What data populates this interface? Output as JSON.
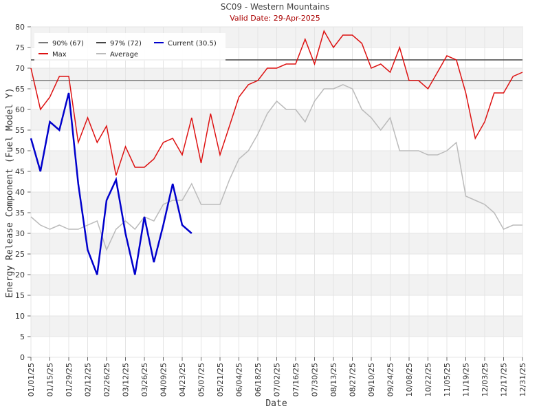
{
  "chart_data": {
    "type": "line",
    "title": "SC09 - Western Mountains",
    "subtitle": "Valid Date: 29-Apr-2025",
    "x_label": "Date",
    "y_label": "Energy Release Component (Fuel Model Y)",
    "x": [
      "01/01/25",
      "01/08/25",
      "01/15/25",
      "01/22/25",
      "01/29/25",
      "02/05/25",
      "02/12/25",
      "02/19/25",
      "02/26/25",
      "03/05/25",
      "03/12/25",
      "03/19/25",
      "03/26/25",
      "04/02/25",
      "04/09/25",
      "04/16/25",
      "04/23/25",
      "04/30/25",
      "05/07/25",
      "05/14/25",
      "05/21/25",
      "05/28/25",
      "06/04/25",
      "06/11/25",
      "06/18/25",
      "06/25/25",
      "07/02/25",
      "07/09/25",
      "07/16/25",
      "07/23/25",
      "07/30/25",
      "08/06/25",
      "08/13/25",
      "08/20/25",
      "08/27/25",
      "09/03/25",
      "09/10/25",
      "09/17/25",
      "09/24/25",
      "10/01/25",
      "10/08/25",
      "10/15/25",
      "10/22/25",
      "10/29/25",
      "11/05/25",
      "11/12/25",
      "11/19/25",
      "11/26/25",
      "12/03/25",
      "12/10/25",
      "12/17/25",
      "12/24/25",
      "12/31/25"
    ],
    "hlines": [
      {
        "name": "90% (67)",
        "value": 67,
        "color": "#777777"
      },
      {
        "name": "97% (72)",
        "value": 72,
        "color": "#444444"
      }
    ],
    "series": [
      {
        "name": "Max",
        "color": "#dd1111",
        "values": [
          70,
          60,
          63,
          68,
          68,
          52,
          58,
          52,
          56,
          44,
          51,
          46,
          46,
          48,
          52,
          53,
          49,
          58,
          47,
          59,
          49,
          56,
          63,
          66,
          67,
          70,
          70,
          71,
          71,
          77,
          71,
          79,
          75,
          78,
          78,
          76,
          70,
          71,
          69,
          75,
          67,
          67,
          65,
          69,
          73,
          72,
          64,
          53,
          57,
          64,
          64,
          68,
          69
        ]
      },
      {
        "name": "Average",
        "color": "#bbbbbb",
        "values": [
          34,
          32,
          31,
          32,
          31,
          31,
          32,
          33,
          26,
          31,
          33,
          31,
          34,
          33,
          37,
          38,
          38,
          42,
          37,
          37,
          37,
          43,
          48,
          50,
          54,
          59,
          62,
          60,
          60,
          57,
          62,
          65,
          65,
          66,
          65,
          60,
          58,
          55,
          58,
          50,
          50,
          50,
          49,
          49,
          50,
          52,
          39,
          38,
          37,
          35,
          31,
          32,
          32
        ]
      },
      {
        "name": "Current (30.5)",
        "color": "#0000cc",
        "values": [
          53,
          45,
          57,
          55,
          64,
          42,
          26,
          20,
          38,
          43,
          30,
          20,
          34,
          23,
          32,
          42,
          32,
          30,
          null,
          null,
          null,
          null,
          null,
          null,
          null,
          null,
          null,
          null,
          null,
          null,
          null,
          null,
          null,
          null,
          null,
          null,
          null,
          null,
          null,
          null,
          null,
          null,
          null,
          null,
          null,
          null,
          null,
          null,
          null,
          null,
          null,
          null,
          null
        ]
      }
    ],
    "xlim": [
      "01/01/25",
      "12/31/25"
    ],
    "xticks": [
      "01/01/25",
      "01/15/25",
      "01/29/25",
      "02/12/25",
      "02/26/25",
      "03/12/25",
      "03/26/25",
      "04/09/25",
      "04/23/25",
      "05/07/25",
      "05/21/25",
      "06/04/25",
      "06/18/25",
      "07/02/25",
      "07/16/25",
      "07/30/25",
      "08/13/25",
      "08/27/25",
      "09/10/25",
      "09/24/25",
      "10/08/25",
      "10/22/25",
      "11/05/25",
      "11/19/25",
      "12/03/25",
      "12/17/25",
      "12/31/25"
    ],
    "ylim": [
      0,
      80
    ],
    "yticks": [
      0,
      5,
      10,
      15,
      20,
      25,
      30,
      35,
      40,
      45,
      50,
      55,
      60,
      65,
      70,
      75,
      80
    ],
    "grid": true
  }
}
